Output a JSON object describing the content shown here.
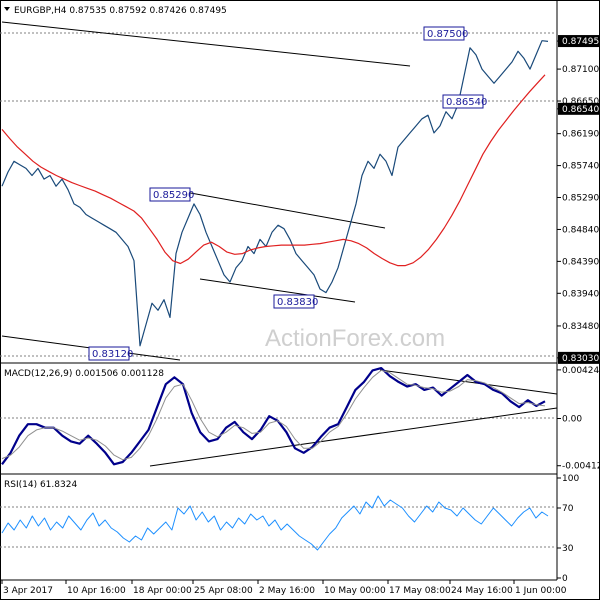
{
  "header": {
    "symbol_line": "EURGBP,H4 0.87535 0.87592 0.87426 0.87495"
  },
  "watermark": "ActionForex.com",
  "colors": {
    "price": "#1a4a7a",
    "ma": "#e02020",
    "macd": "#00008b",
    "signal": "#909090",
    "rsi": "#1e90ff"
  },
  "chart_data": [
    {
      "type": "line",
      "panel": "price",
      "title": "EURGBP,H4 0.87535 0.87592 0.87426 0.87495",
      "ylim": [
        0.83,
        0.8782
      ],
      "y_ticks": [
        "0.87495",
        "0.87100",
        "0.86650",
        "0.86540",
        "0.86190",
        "0.85740",
        "0.85290",
        "0.84840",
        "0.84390",
        "0.83940",
        "0.83480",
        "0.83030"
      ],
      "x_labels": [
        "3 Apr 2017",
        "10 Apr 16:00",
        "18 Apr 00:00",
        "25 Apr 08:00",
        "2 May 16:00",
        "10 May 00:00",
        "17 May 08:00",
        "24 May 16:00",
        "1 Jun 00:00"
      ],
      "annotations": [
        "0.87500",
        "0.86540",
        "0.85290",
        "0.83830",
        "0.83120"
      ],
      "series": [
        {
          "values": [
            0.8545,
            0.8565,
            0.858,
            0.8575,
            0.857,
            0.856,
            0.857,
            0.8555,
            0.856,
            0.8545,
            0.8555,
            0.854,
            0.852,
            0.8515,
            0.8505,
            0.85,
            0.8495,
            0.849,
            0.8485,
            0.848,
            0.847,
            0.846,
            0.844,
            0.832,
            0.835,
            0.838,
            0.837,
            0.8385,
            0.836,
            0.845,
            0.848,
            0.85,
            0.852,
            0.8505,
            0.848,
            0.846,
            0.844,
            0.842,
            0.841,
            0.843,
            0.844,
            0.846,
            0.845,
            0.847,
            0.846,
            0.848,
            0.849,
            0.8485,
            0.847,
            0.845,
            0.844,
            0.843,
            0.842,
            0.84,
            0.8395,
            0.841,
            0.843,
            0.846,
            0.849,
            0.852,
            0.856,
            0.858,
            0.857,
            0.859,
            0.858,
            0.856,
            0.86,
            0.861,
            0.862,
            0.863,
            0.864,
            0.8645,
            0.862,
            0.863,
            0.865,
            0.864,
            0.866,
            0.87,
            0.874,
            0.873,
            0.871,
            0.87,
            0.869,
            0.87,
            0.871,
            0.872,
            0.8735,
            0.8725,
            0.871,
            0.873,
            0.875,
            0.8749
          ]
        },
        {
          "values": [
            0.8625,
            0.8612,
            0.86,
            0.859,
            0.858,
            0.8572,
            0.8566,
            0.856,
            0.8555,
            0.855,
            0.8546,
            0.8542,
            0.8538,
            0.8533,
            0.8528,
            0.8522,
            0.8516,
            0.851,
            0.85,
            0.8485,
            0.847,
            0.8452,
            0.844,
            0.8436,
            0.8442,
            0.8452,
            0.8462,
            0.8466,
            0.846,
            0.8452,
            0.8449,
            0.845,
            0.8455,
            0.8458,
            0.846,
            0.8461,
            0.8462,
            0.8462,
            0.8462,
            0.8462,
            0.8463,
            0.8464,
            0.8466,
            0.8468,
            0.847,
            0.8468,
            0.8464,
            0.8458,
            0.845,
            0.8443,
            0.8437,
            0.8433,
            0.8433,
            0.8437,
            0.8445,
            0.8456,
            0.847,
            0.8486,
            0.8504,
            0.8524,
            0.8546,
            0.8568,
            0.859,
            0.8608,
            0.8624,
            0.8638,
            0.8652,
            0.8665,
            0.8678,
            0.869,
            0.8702
          ]
        }
      ]
    },
    {
      "type": "line",
      "panel": "macd",
      "title": "MACD(12,26,9) 0.001506 0.001128",
      "ylim": [
        -0.0045,
        0.0045
      ],
      "y_ticks": [
        "0.004248",
        "0.00",
        "-0.004126"
      ],
      "series": [
        {
          "values": [
            -0.004,
            -0.003,
            -0.0015,
            -0.0005,
            -0.0005,
            -0.0008,
            -0.0008,
            -0.0015,
            -0.002,
            -0.0022,
            -0.0015,
            -0.0022,
            -0.003,
            -0.004,
            -0.0038,
            -0.003,
            -0.002,
            -0.001,
            0.001,
            0.003,
            0.0036,
            0.003,
            0.0005,
            -0.0012,
            -0.002,
            -0.0018,
            -0.0008,
            -0.0003,
            -0.0012,
            -0.0018,
            -0.001,
            0.0002,
            -0.0002,
            -0.0012,
            -0.0026,
            -0.003,
            -0.0025,
            -0.0016,
            -0.0008,
            -0.0005,
            0.001,
            0.0025,
            0.0032,
            0.0042,
            0.0044,
            0.0037,
            0.0032,
            0.0028,
            0.003,
            0.0025,
            0.0027,
            0.002,
            0.0026,
            0.0032,
            0.0038,
            0.0032,
            0.003,
            0.0025,
            0.0022,
            0.0015,
            0.001,
            0.0016,
            0.0011,
            0.0015
          ]
        },
        {
          "values": [
            -0.0035,
            -0.0032,
            -0.0025,
            -0.0015,
            -0.001,
            -0.0008,
            -0.0008,
            -0.0011,
            -0.0015,
            -0.0019,
            -0.0017,
            -0.0019,
            -0.0024,
            -0.0032,
            -0.0036,
            -0.0034,
            -0.0026,
            -0.0015,
            0.0,
            0.0018,
            0.0028,
            0.003,
            0.0016,
            0.0,
            -0.0012,
            -0.0016,
            -0.0012,
            -0.0006,
            -0.0008,
            -0.0013,
            -0.0012,
            -0.0004,
            -0.0002,
            -0.0007,
            -0.0018,
            -0.0026,
            -0.0026,
            -0.002,
            -0.0012,
            -0.0007,
            0.0004,
            0.0017,
            0.0027,
            0.0036,
            0.0042,
            0.004,
            0.0035,
            0.003,
            0.0029,
            0.0027,
            0.0026,
            0.0023,
            0.0024,
            0.0028,
            0.0034,
            0.0033,
            0.0031,
            0.0027,
            0.0023,
            0.0018,
            0.0013,
            0.0014,
            0.0012,
            0.0011
          ]
        }
      ]
    },
    {
      "type": "line",
      "panel": "rsi",
      "title": "RSI(14) 61.8324",
      "ylim": [
        0,
        100
      ],
      "y_ticks": [
        "100",
        "70",
        "30",
        "0"
      ],
      "series": [
        {
          "values": [
            45,
            55,
            48,
            58,
            50,
            62,
            52,
            60,
            48,
            56,
            50,
            62,
            55,
            48,
            58,
            65,
            52,
            58,
            50,
            46,
            40,
            36,
            42,
            38,
            50,
            44,
            50,
            56,
            48,
            70,
            64,
            72,
            58,
            66,
            56,
            62,
            48,
            56,
            50,
            60,
            54,
            64,
            58,
            62,
            52,
            58,
            48,
            54,
            48,
            42,
            38,
            34,
            28,
            36,
            44,
            50,
            60,
            66,
            72,
            64,
            76,
            70,
            82,
            72,
            78,
            74,
            70,
            62,
            56,
            64,
            72,
            66,
            76,
            70,
            68,
            62,
            70,
            64,
            58,
            54,
            62,
            70,
            64,
            58,
            52,
            60,
            66,
            70,
            60,
            66,
            62
          ]
        }
      ]
    }
  ]
}
